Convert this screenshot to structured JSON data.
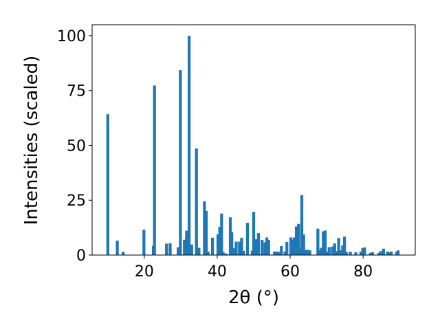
{
  "chart_data": {
    "type": "bar",
    "xlabel": "2θ (°)",
    "ylabel": "Intensities (scaled)",
    "xlim": [
      5.7,
      94.3
    ],
    "ylim": [
      0,
      105
    ],
    "grid": false,
    "bar_color": "#1f77b4",
    "bar_width": 0.8,
    "xticks": [
      20,
      40,
      60,
      80
    ],
    "xtick_labels": [
      "20",
      "40",
      "60",
      "80"
    ],
    "yticks": [
      0,
      25,
      50,
      75,
      100
    ],
    "ytick_labels": [
      "0",
      "25",
      "50",
      "75",
      "100"
    ],
    "x": [
      10.0,
      12.6,
      14.2,
      19.9,
      22.5,
      22.8,
      26.1,
      27.1,
      29.3,
      29.9,
      31.0,
      31.6,
      32.3,
      33.0,
      34.3,
      35.0,
      36.5,
      37.0,
      37.5,
      38.7,
      40.2,
      40.7,
      41.2,
      41.6,
      42.4,
      43.6,
      44.0,
      44.6,
      45.2,
      46.1,
      46.7,
      47.2,
      48.3,
      49.6,
      50.0,
      50.6,
      51.3,
      52.3,
      53.1,
      53.6,
      54.1,
      55.7,
      56.3,
      57.1,
      57.6,
      58.6,
      59.1,
      60.2,
      60.6,
      61.1,
      61.7,
      62.3,
      62.6,
      63.2,
      63.7,
      64.3,
      64.9,
      65.4,
      67.6,
      68.1,
      68.6,
      69.1,
      69.6,
      70.2,
      70.7,
      71.6,
      72.2,
      72.7,
      73.3,
      73.9,
      74.4,
      74.9,
      75.4,
      76.5,
      78.0,
      79.4,
      79.9,
      80.4,
      82.0,
      82.6,
      84.3,
      84.8,
      85.6,
      86.7,
      87.2,
      87.7,
      89.2,
      89.6
    ],
    "values": [
      64.2,
      6.6,
      1.5,
      11.6,
      4.2,
      77.3,
      5.2,
      5.4,
      3.6,
      84.3,
      7.0,
      11.1,
      100.0,
      4.8,
      48.6,
      3.3,
      24.5,
      20.1,
      1.6,
      7.9,
      9.5,
      12.9,
      18.9,
      1.4,
      0.7,
      17.2,
      10.4,
      3.1,
      6.1,
      6.1,
      7.9,
      1.9,
      14.7,
      2.0,
      19.7,
      7.2,
      10.0,
      6.9,
      5.8,
      8.0,
      6.9,
      1.6,
      1.6,
      1.5,
      4.1,
      1.6,
      6.0,
      8.0,
      6.9,
      8.0,
      13.0,
      14.2,
      2.9,
      27.3,
      9.4,
      2.4,
      2.4,
      2.1,
      12.0,
      2.4,
      3.3,
      10.8,
      11.2,
      1.6,
      3.6,
      3.9,
      5.3,
      1.8,
      7.8,
      2.2,
      4.4,
      8.4,
      1.5,
      1.5,
      1.3,
      1.6,
      3.2,
      3.5,
      1.0,
      1.3,
      1.0,
      1.8,
      2.9,
      1.6,
      1.2,
      1.6,
      1.5,
      2.1
    ]
  }
}
